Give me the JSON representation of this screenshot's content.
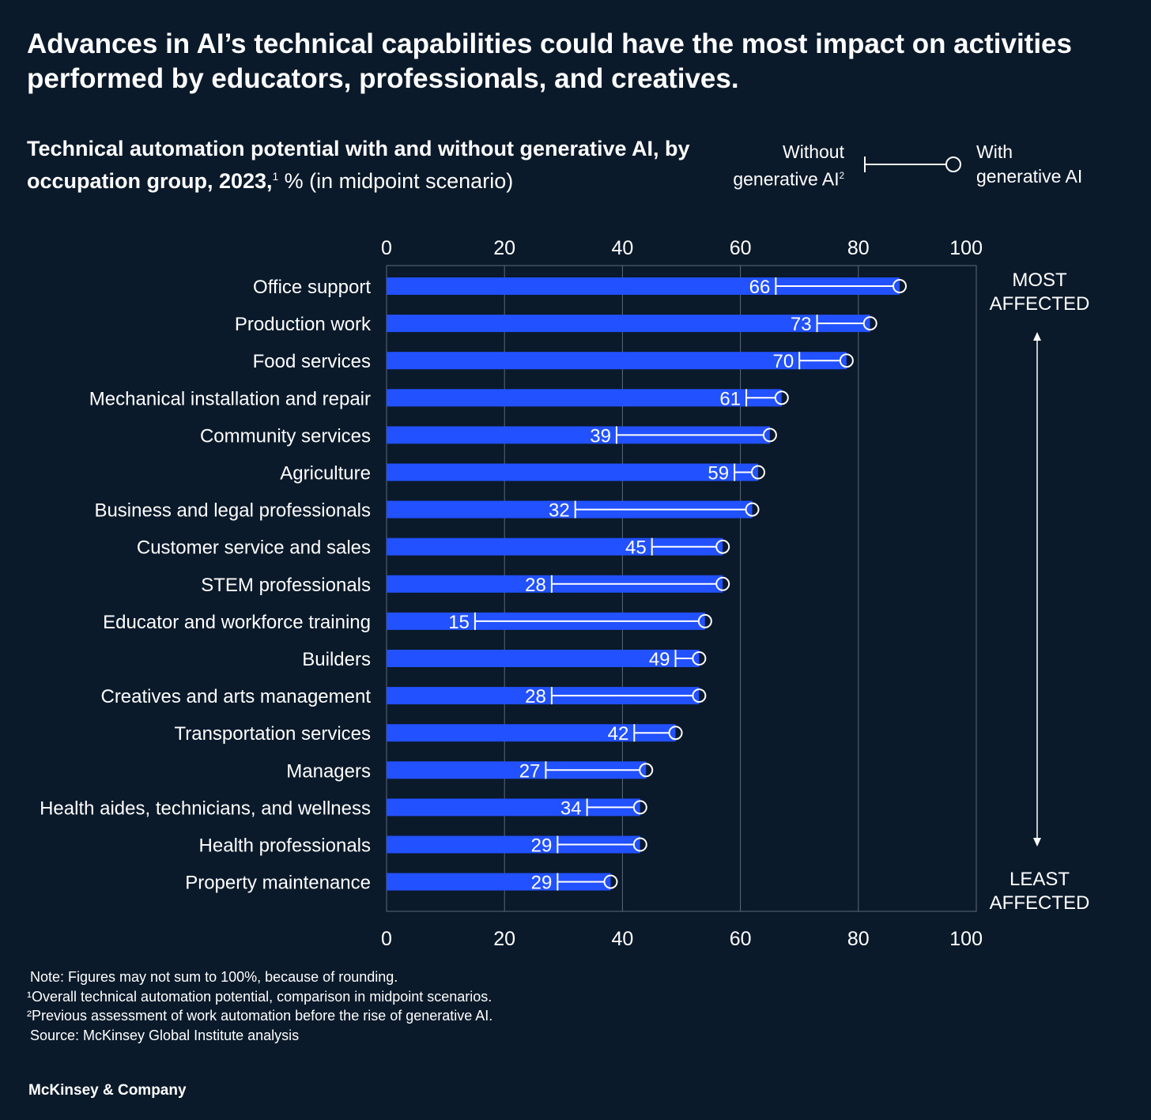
{
  "title": "Advances in AI’s technical capabilities could have the most impact on activities performed by educators, professionals, and creatives.",
  "subtitle_bold": "Technical automation potential with and without generative AI, by occupation group, 2023,",
  "subtitle_sup": "1",
  "subtitle_rest": " % (in midpoint scenario)",
  "legend": {
    "without": "Without generative AI",
    "without_sup": "2",
    "with": "With generative AI"
  },
  "colors": {
    "background": "#0b1a2b",
    "bar": "#2251ff",
    "line": "#ffffff",
    "grid": "#5b6878"
  },
  "chart_data": {
    "type": "bar",
    "orientation": "horizontal",
    "xlim": [
      0,
      100
    ],
    "xticks": [
      "0",
      "20",
      "40",
      "60",
      "80",
      "100"
    ],
    "grid": true,
    "side_labels": {
      "top": "MOST AFFECTED",
      "bottom": "LEAST AFFECTED"
    },
    "categories": [
      "Office support",
      "Production work",
      "Food services",
      "Mechanical installation and repair",
      "Community services",
      "Agriculture",
      "Business and legal professionals",
      "Customer service and sales",
      "STEM professionals",
      "Educator and workforce training",
      "Builders",
      "Creatives and arts management",
      "Transportation services",
      "Managers",
      "Health aides, technicians, and wellness",
      "Health professionals",
      "Property maintenance"
    ],
    "series": [
      {
        "name": "Without generative AI",
        "values": [
          66,
          73,
          70,
          61,
          39,
          59,
          32,
          45,
          28,
          15,
          49,
          28,
          42,
          27,
          34,
          29,
          29
        ]
      },
      {
        "name": "With generative AI",
        "values": [
          87,
          82,
          78,
          67,
          65,
          63,
          62,
          57,
          57,
          54,
          53,
          53,
          49,
          44,
          43,
          43,
          38
        ]
      }
    ]
  },
  "notes": [
    "Note: Figures may not sum to 100%, because of rounding.",
    "¹Overall technical automation potential, comparison in midpoint scenarios.",
    "²Previous assessment of work automation before the rise of generative AI.",
    "Source: McKinsey Global Institute analysis"
  ],
  "brand": "McKinsey & Company"
}
